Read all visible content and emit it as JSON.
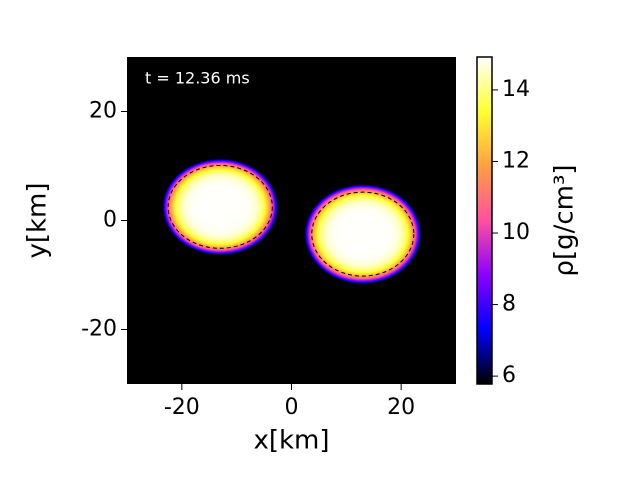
{
  "chart_data": {
    "type": "heatmap",
    "annotation": "t = 12.36 ms",
    "x_label": "x[km]",
    "y_label": "y[km]",
    "colorbar_label": "ρ[g/cm³]",
    "xlim": [
      -30,
      30
    ],
    "ylim": [
      -30,
      30
    ],
    "xticks": [
      -20,
      0,
      20
    ],
    "yticks": [
      -20,
      0,
      20
    ],
    "clim": [
      5.78,
      14.92
    ],
    "cticks": [
      6,
      8,
      10,
      12,
      14
    ],
    "colormap": [
      "#000000",
      "#0000ff",
      "#8a00ff",
      "#ff50a0",
      "#ffa040",
      "#ffff30",
      "#ffffff"
    ],
    "background": "#000000",
    "blobs": [
      {
        "x": -13,
        "y": 2.5,
        "rx": 10.5,
        "ry": 8.8,
        "peak": 14.9,
        "contour_rx": 9.5,
        "contour_ry": 7.6
      },
      {
        "x": 13,
        "y": -2.5,
        "rx": 10.6,
        "ry": 9.1,
        "peak": 14.9,
        "contour_rx": 9.3,
        "contour_ry": 7.7
      }
    ]
  }
}
